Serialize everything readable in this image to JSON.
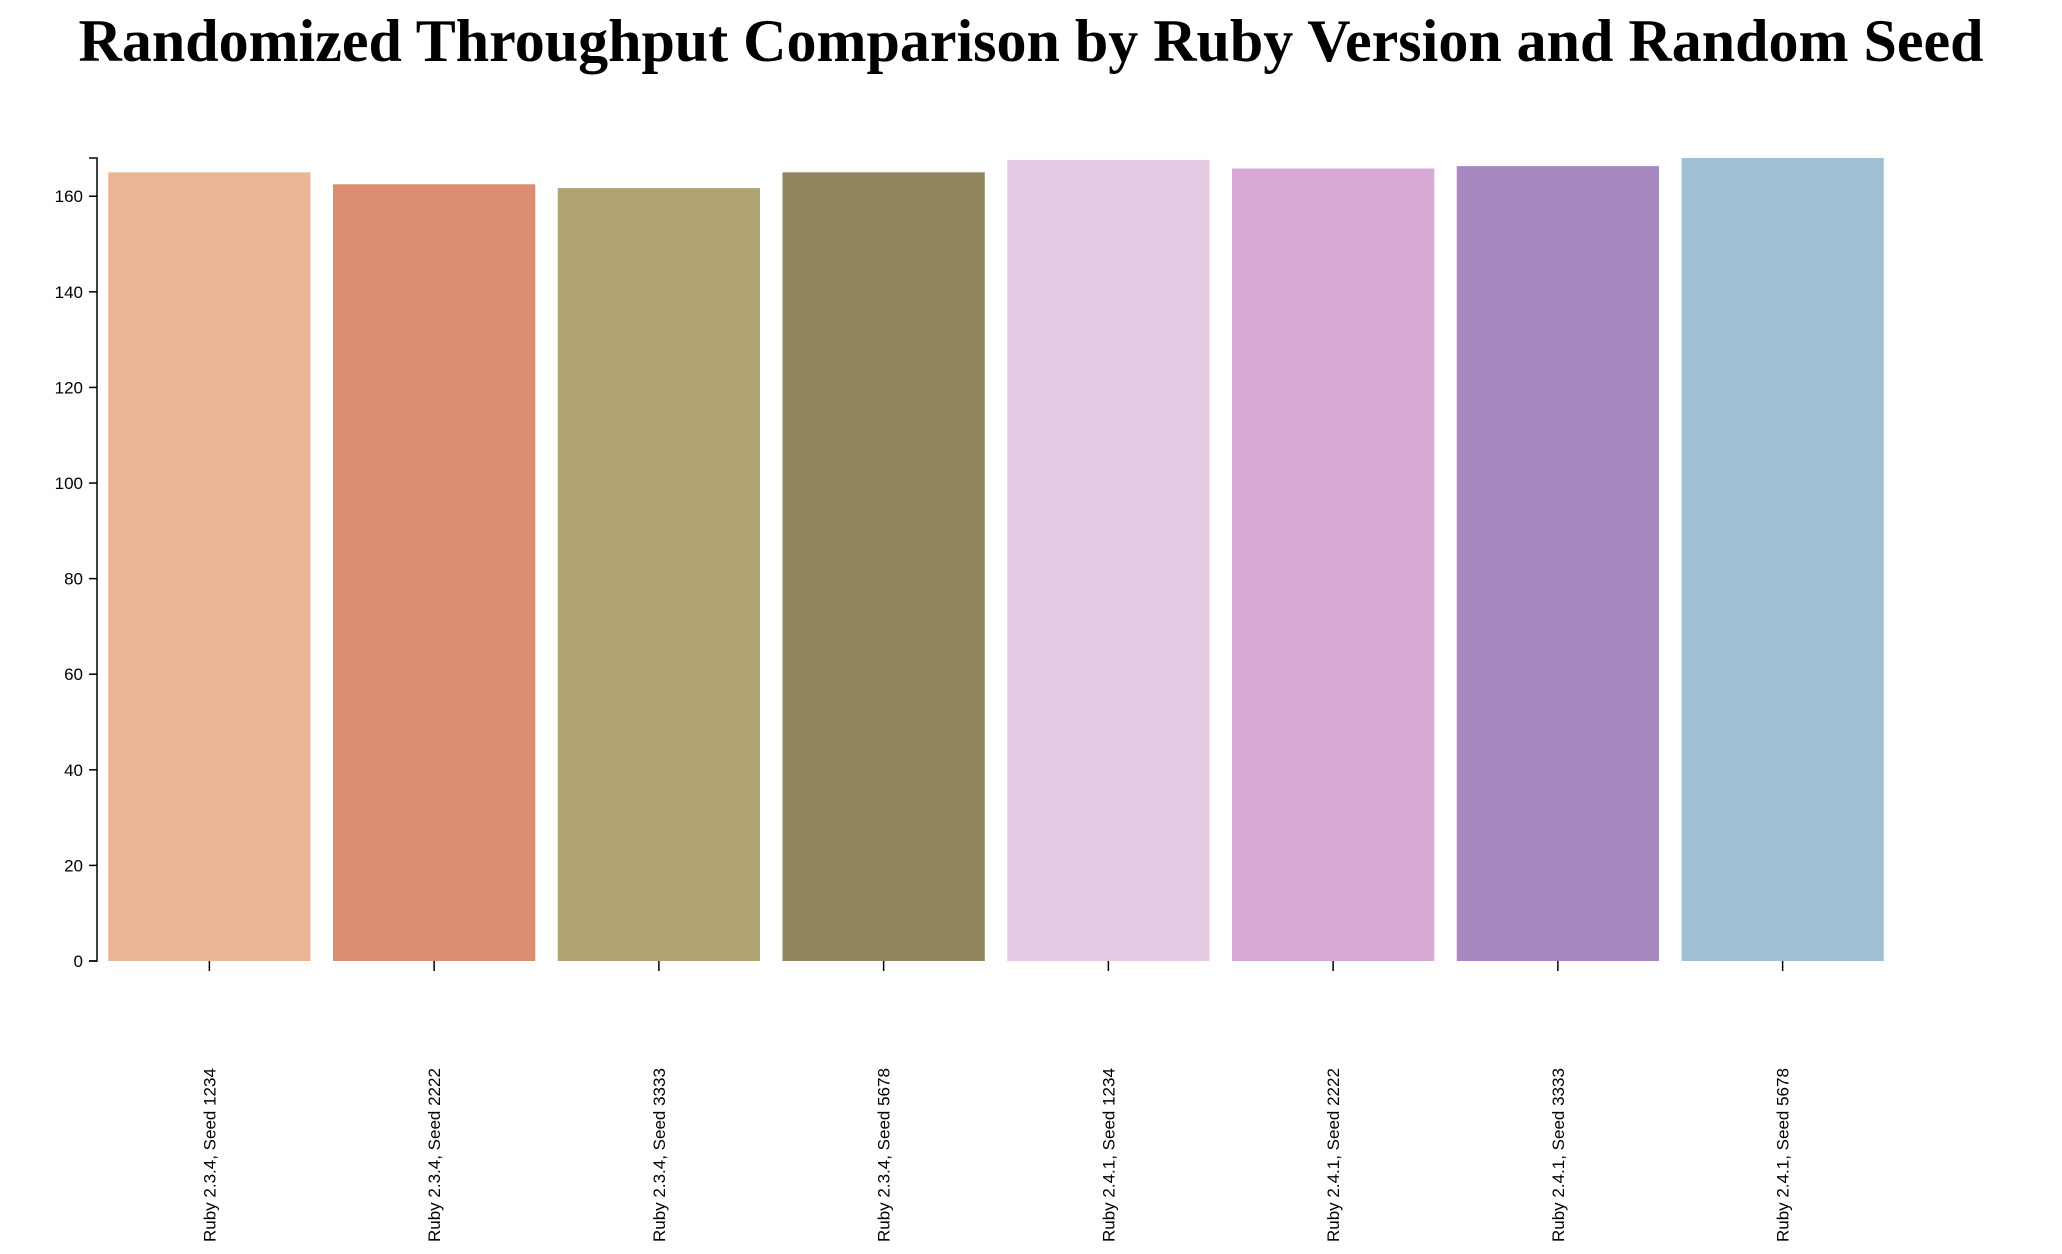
{
  "chart_data": {
    "type": "bar",
    "title": "Randomized Throughput Comparison by Ruby Version and Random Seed",
    "xlabel": "",
    "ylabel": "",
    "categories": [
      "Ruby 2.3.4, Seed 1234",
      "Ruby 2.3.4, Seed 2222",
      "Ruby 2.3.4, Seed 3333",
      "Ruby 2.3.4, Seed 5678",
      "Ruby 2.4.1, Seed 1234",
      "Ruby 2.4.1, Seed 2222",
      "Ruby 2.4.1, Seed 3333",
      "Ruby 2.4.1, Seed 5678"
    ],
    "values": [
      165.0,
      162.5,
      161.7,
      165.0,
      167.6,
      165.8,
      166.3,
      168.0
    ],
    "colors": [
      "#EBB697",
      "#DB8D72",
      "#B1A372",
      "#91865D",
      "#E4CAE3",
      "#D7A9D4",
      "#A789C0",
      "#9FC1D3"
    ],
    "ylim": [
      0,
      168
    ],
    "yticks": [
      0,
      20,
      40,
      60,
      80,
      100,
      120,
      140,
      160
    ],
    "grid": false,
    "legend": "none"
  }
}
